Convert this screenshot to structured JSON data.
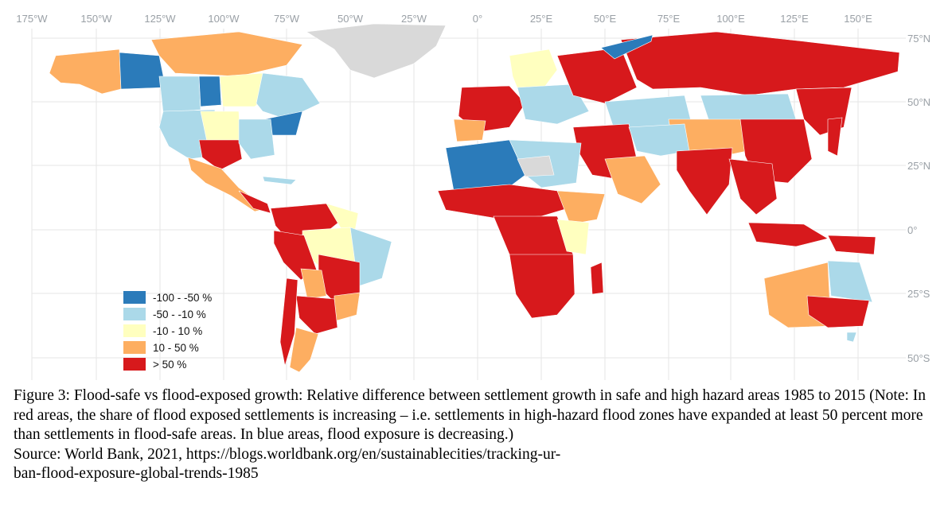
{
  "map": {
    "lon_labels": [
      "175°W",
      "150°W",
      "125°W",
      "100°W",
      "75°W",
      "50°W",
      "25°W",
      "0°",
      "25°E",
      "50°E",
      "75°E",
      "100°E",
      "125°E",
      "150°E"
    ],
    "lat_labels": [
      "75°N",
      "50°N",
      "25°N",
      "0°",
      "25°S",
      "50°S"
    ],
    "legend": [
      {
        "label": "-100 - -50 %",
        "color": "#2b7bba"
      },
      {
        "label": "-50 - -10 %",
        "color": "#abd9e9"
      },
      {
        "label": "-10 - 10 %",
        "color": "#ffffbf"
      },
      {
        "label": "10 - 50 %",
        "color": "#fdae61"
      },
      {
        "label": "> 50 %",
        "color": "#d7191c"
      }
    ],
    "nodata_color": "#d9d9d9"
  },
  "caption": {
    "figure": "Figure 3:  Flood-safe vs flood-exposed growth: Relative difference between settlement growth in safe and high hazard areas 1985 to 2015 (Note: In red areas, the share of flood exposed settlements is increasing – i.e. settlements in high-hazard flood zones have expanded at least 50 percent more than settlements in flood-safe areas. In blue areas, flood exposure is decreasing.)",
    "source_line1": "Source:  World Bank, 2021,  https://blogs.worldbank.org/en/sustainablecities/tracking-ur-",
    "source_line2": "ban-flood-exposure-global-trends-1985"
  }
}
